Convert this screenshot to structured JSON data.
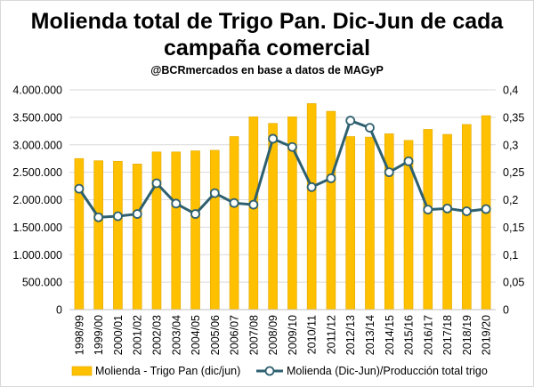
{
  "chart_data": {
    "type": "bar",
    "title_line1": "Molienda total de Trigo Pan. Dic-Jun de cada",
    "title_line2": "campaña comercial",
    "subtitle": "@BCRmercados  en base a datos de MAGyP",
    "categories": [
      "1998/99",
      "1999/00",
      "2000/01",
      "2001/02",
      "2002/03",
      "2003/04",
      "2004/05",
      "2005/06",
      "2006/07",
      "2007/08",
      "2008/09",
      "2009/10",
      "2010/11",
      "2011/12",
      "2012/13",
      "2013/14",
      "2014/15",
      "2015/16",
      "2016/17",
      "2017/18",
      "2018/19",
      "2019/20"
    ],
    "series": [
      {
        "name": "Molienda - Trigo Pan (dic/jun)",
        "type": "bar",
        "axis": "left",
        "values": [
          2750000,
          2710000,
          2700000,
          2650000,
          2870000,
          2870000,
          2890000,
          2900000,
          3150000,
          3510000,
          3390000,
          3510000,
          3750000,
          3610000,
          3150000,
          3140000,
          3200000,
          3080000,
          3280000,
          3190000,
          3370000,
          3530000
        ]
      },
      {
        "name": "Molienda (Dic-Jun)/Producción total trigo",
        "type": "line",
        "axis": "right",
        "values": [
          0.22,
          0.168,
          0.17,
          0.174,
          0.23,
          0.193,
          0.174,
          0.212,
          0.194,
          0.191,
          0.311,
          0.296,
          0.223,
          0.239,
          0.344,
          0.331,
          0.25,
          0.27,
          0.182,
          0.184,
          0.179,
          0.183
        ]
      }
    ],
    "y_left": {
      "min": 0,
      "max": 4000000,
      "step": 500000,
      "tick_labels": [
        "0",
        "500.000",
        "1.000.000",
        "1.500.000",
        "2.000.000",
        "2.500.000",
        "3.000.000",
        "3.500.000",
        "4.000.000"
      ]
    },
    "y_right": {
      "min": 0,
      "max": 0.4,
      "step": 0.05,
      "tick_labels": [
        "0",
        "0,05",
        "0,1",
        "0,15",
        "0,2",
        "0,25",
        "0,3",
        "0,35",
        "0,4"
      ]
    },
    "grid": true,
    "legend_position": "bottom"
  },
  "colors": {
    "bar_fill": "#FFC000",
    "bar_stroke": "#E0A800",
    "line": "#2E6070",
    "marker_fill": "#FFFFFF",
    "grid": "#D9D9D9",
    "axis": "#BFBFBF"
  }
}
